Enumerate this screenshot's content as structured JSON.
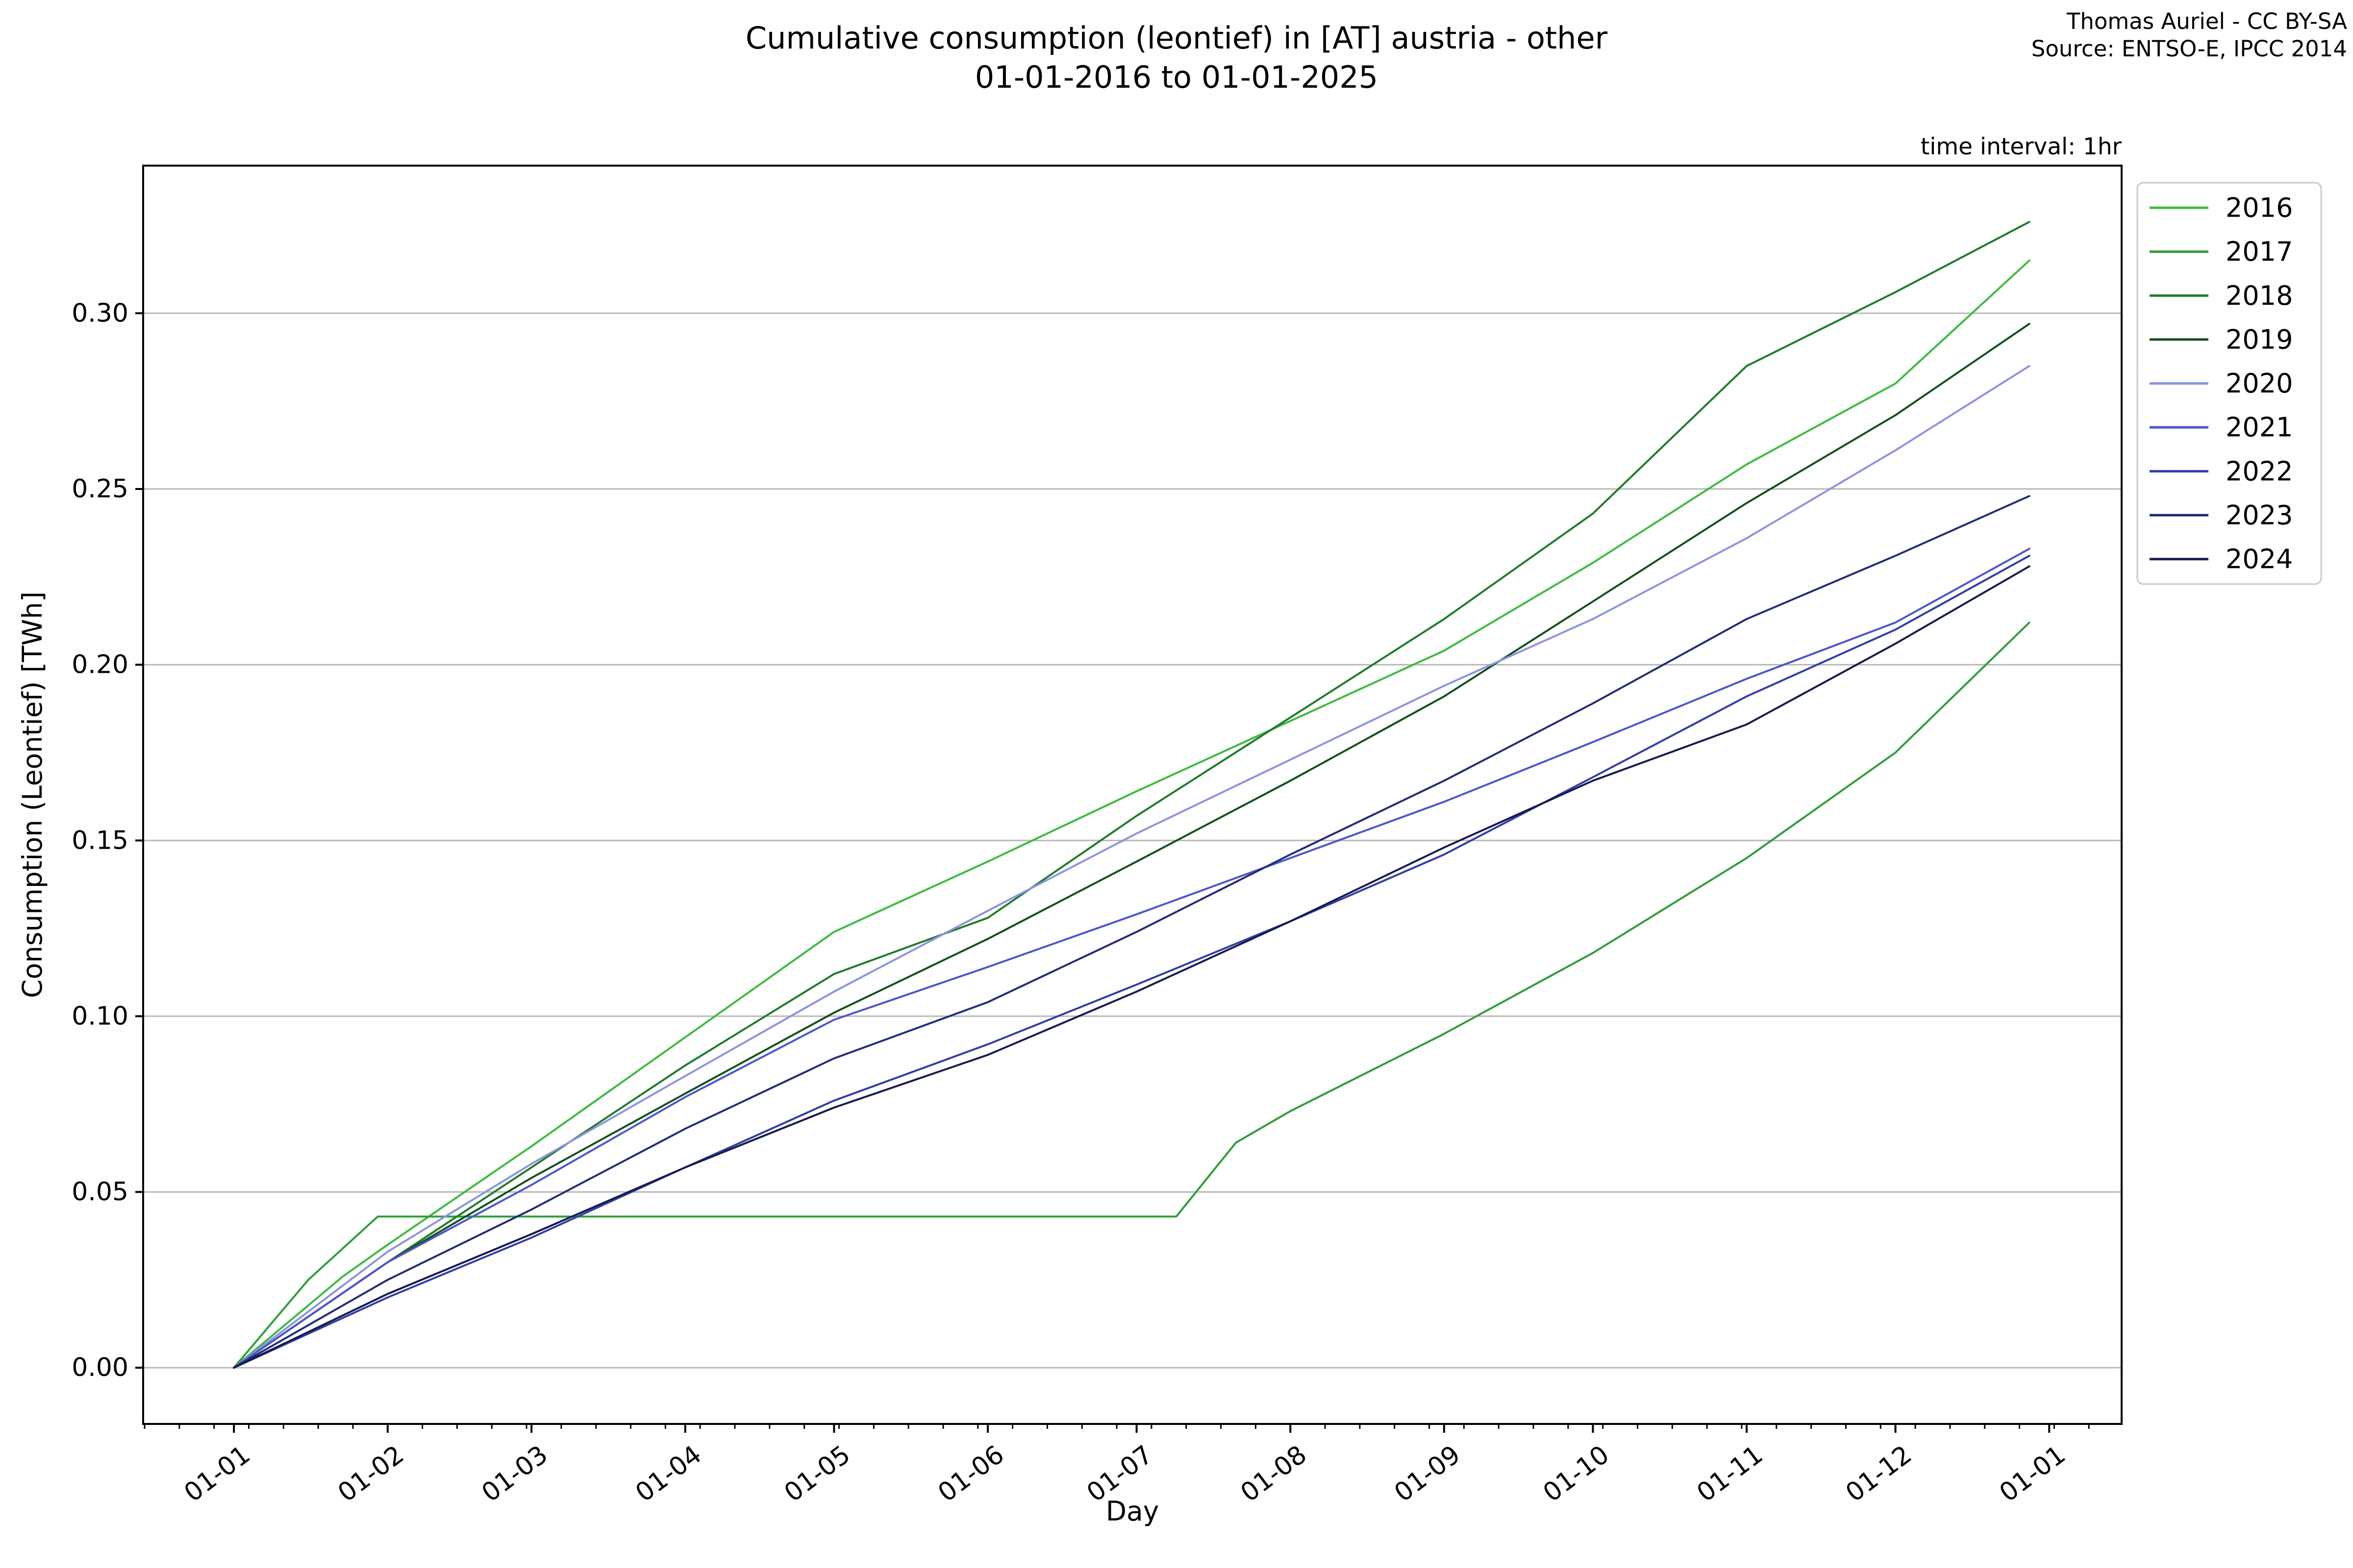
{
  "header": {
    "title_line1": "Cumulative consumption (leontief) in [AT] austria - other",
    "title_line2": "01-01-2016 to 01-01-2025",
    "credit_line1": "Thomas Auriel - CC BY-SA",
    "credit_line2": "Source: ENTSO-E, IPCC 2014",
    "time_interval_note": "time interval: 1hr"
  },
  "chart_data": {
    "type": "line",
    "title": "Cumulative consumption (leontief) in [AT] austria - other",
    "subtitle": "01-01-2016 to 01-01-2025",
    "xlabel": "Day",
    "ylabel": "Consumption (Leontief) [TWh]",
    "x_tick_labels": [
      "01-01",
      "01-02",
      "01-03",
      "01-04",
      "01-05",
      "01-06",
      "01-07",
      "01-08",
      "01-09",
      "01-10",
      "01-11",
      "01-12",
      "01-01"
    ],
    "x_tick_days": [
      0,
      31,
      60,
      91,
      121,
      152,
      182,
      213,
      244,
      274,
      305,
      335,
      366
    ],
    "y_tick_labels": [
      "0.00",
      "0.05",
      "0.10",
      "0.15",
      "0.20",
      "0.25",
      "0.30"
    ],
    "y_tick_values": [
      0.0,
      0.05,
      0.1,
      0.15,
      0.2,
      0.25,
      0.3
    ],
    "xlim_days": [
      -18.3,
      380.6
    ],
    "ylim": [
      -0.016,
      0.342
    ],
    "grid": "horizontal-only",
    "legend_position": "outside-upper-right",
    "colors": {
      "grid": "#b8b8b8",
      "axis": "#000000",
      "legend_border": "#c9c9c9",
      "background": "#ffffff"
    },
    "series": [
      {
        "name": "2016",
        "color": "#3cbb3c",
        "points": [
          [
            0,
            0
          ],
          [
            22,
            0.026
          ],
          [
            31,
            0.035
          ],
          [
            60,
            0.063
          ],
          [
            91,
            0.094
          ],
          [
            121,
            0.124
          ],
          [
            152,
            0.144
          ],
          [
            182,
            0.164
          ],
          [
            213,
            0.184
          ],
          [
            244,
            0.204
          ],
          [
            274,
            0.229
          ],
          [
            305,
            0.257
          ],
          [
            335,
            0.28
          ],
          [
            362,
            0.315
          ]
        ]
      },
      {
        "name": "2017",
        "color": "#2d9e36",
        "points": [
          [
            0,
            0
          ],
          [
            15,
            0.025
          ],
          [
            29,
            0.043
          ],
          [
            60,
            0.043
          ],
          [
            91,
            0.043
          ],
          [
            121,
            0.043
          ],
          [
            152,
            0.043
          ],
          [
            182,
            0.043
          ],
          [
            190,
            0.043
          ],
          [
            202,
            0.064
          ],
          [
            213,
            0.073
          ],
          [
            244,
            0.095
          ],
          [
            274,
            0.118
          ],
          [
            305,
            0.145
          ],
          [
            335,
            0.175
          ],
          [
            362,
            0.212
          ]
        ]
      },
      {
        "name": "2018",
        "color": "#1e7b2b",
        "points": [
          [
            0,
            0
          ],
          [
            31,
            0.03
          ],
          [
            60,
            0.057
          ],
          [
            91,
            0.086
          ],
          [
            121,
            0.112
          ],
          [
            152,
            0.128
          ],
          [
            182,
            0.157
          ],
          [
            213,
            0.185
          ],
          [
            244,
            0.213
          ],
          [
            274,
            0.243
          ],
          [
            305,
            0.285
          ],
          [
            335,
            0.306
          ],
          [
            362,
            0.326
          ]
        ]
      },
      {
        "name": "2019",
        "color": "#10511b",
        "points": [
          [
            0,
            0
          ],
          [
            31,
            0.03
          ],
          [
            60,
            0.054
          ],
          [
            91,
            0.078
          ],
          [
            121,
            0.101
          ],
          [
            152,
            0.122
          ],
          [
            182,
            0.144
          ],
          [
            213,
            0.167
          ],
          [
            244,
            0.191
          ],
          [
            274,
            0.218
          ],
          [
            305,
            0.246
          ],
          [
            335,
            0.271
          ],
          [
            362,
            0.297
          ]
        ]
      },
      {
        "name": "2020",
        "color": "#8d93e0",
        "points": [
          [
            0,
            0
          ],
          [
            31,
            0.033
          ],
          [
            60,
            0.058
          ],
          [
            91,
            0.083
          ],
          [
            121,
            0.107
          ],
          [
            152,
            0.13
          ],
          [
            182,
            0.152
          ],
          [
            213,
            0.173
          ],
          [
            244,
            0.194
          ],
          [
            274,
            0.213
          ],
          [
            305,
            0.236
          ],
          [
            335,
            0.261
          ],
          [
            362,
            0.285
          ]
        ]
      },
      {
        "name": "2021",
        "color": "#4d55cc",
        "points": [
          [
            0,
            0
          ],
          [
            31,
            0.03
          ],
          [
            60,
            0.052
          ],
          [
            91,
            0.077
          ],
          [
            121,
            0.099
          ],
          [
            152,
            0.114
          ],
          [
            182,
            0.129
          ],
          [
            213,
            0.145
          ],
          [
            244,
            0.161
          ],
          [
            274,
            0.178
          ],
          [
            305,
            0.196
          ],
          [
            335,
            0.212
          ],
          [
            362,
            0.233
          ]
        ]
      },
      {
        "name": "2022",
        "color": "#323da6",
        "points": [
          [
            0,
            0
          ],
          [
            31,
            0.02
          ],
          [
            60,
            0.037
          ],
          [
            91,
            0.057
          ],
          [
            121,
            0.076
          ],
          [
            152,
            0.092
          ],
          [
            182,
            0.109
          ],
          [
            213,
            0.127
          ],
          [
            244,
            0.146
          ],
          [
            274,
            0.168
          ],
          [
            305,
            0.191
          ],
          [
            335,
            0.21
          ],
          [
            362,
            0.231
          ]
        ]
      },
      {
        "name": "2023",
        "color": "#232c77",
        "points": [
          [
            0,
            0
          ],
          [
            31,
            0.025
          ],
          [
            60,
            0.045
          ],
          [
            91,
            0.068
          ],
          [
            121,
            0.088
          ],
          [
            152,
            0.104
          ],
          [
            182,
            0.124
          ],
          [
            213,
            0.146
          ],
          [
            244,
            0.167
          ],
          [
            274,
            0.189
          ],
          [
            305,
            0.213
          ],
          [
            335,
            0.231
          ],
          [
            362,
            0.248
          ]
        ]
      },
      {
        "name": "2024",
        "color": "#151b4e",
        "points": [
          [
            0,
            0
          ],
          [
            31,
            0.021
          ],
          [
            60,
            0.038
          ],
          [
            91,
            0.057
          ],
          [
            121,
            0.074
          ],
          [
            152,
            0.089
          ],
          [
            182,
            0.107
          ],
          [
            213,
            0.127
          ],
          [
            244,
            0.148
          ],
          [
            274,
            0.167
          ],
          [
            305,
            0.183
          ],
          [
            335,
            0.206
          ],
          [
            362,
            0.228
          ]
        ]
      }
    ]
  }
}
